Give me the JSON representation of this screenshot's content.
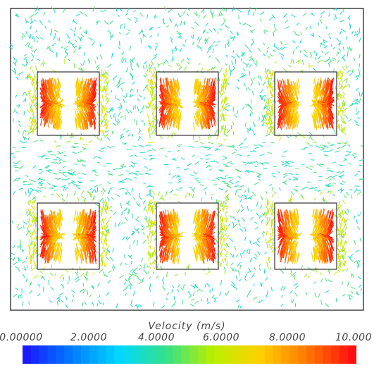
{
  "legend": {
    "title": "Velocity (m/s)",
    "ticks": [
      "0.00000",
      "2.0000",
      "4.0000",
      "6.0000",
      "8.0000",
      "10.000"
    ],
    "min": 0,
    "max": 10,
    "colors": [
      "#1a1aff",
      "#0080ff",
      "#00d8ff",
      "#34e08a",
      "#b8f000",
      "#ffd200",
      "#ff7a00",
      "#ff1010"
    ]
  },
  "flow_field": {
    "background_speed_range": [
      3.0,
      4.8
    ],
    "jet_speed_range": [
      6.5,
      10.0
    ],
    "blocks": [
      "top-left",
      "top-center",
      "top-right",
      "bottom-left",
      "bottom-center",
      "bottom-right"
    ]
  }
}
